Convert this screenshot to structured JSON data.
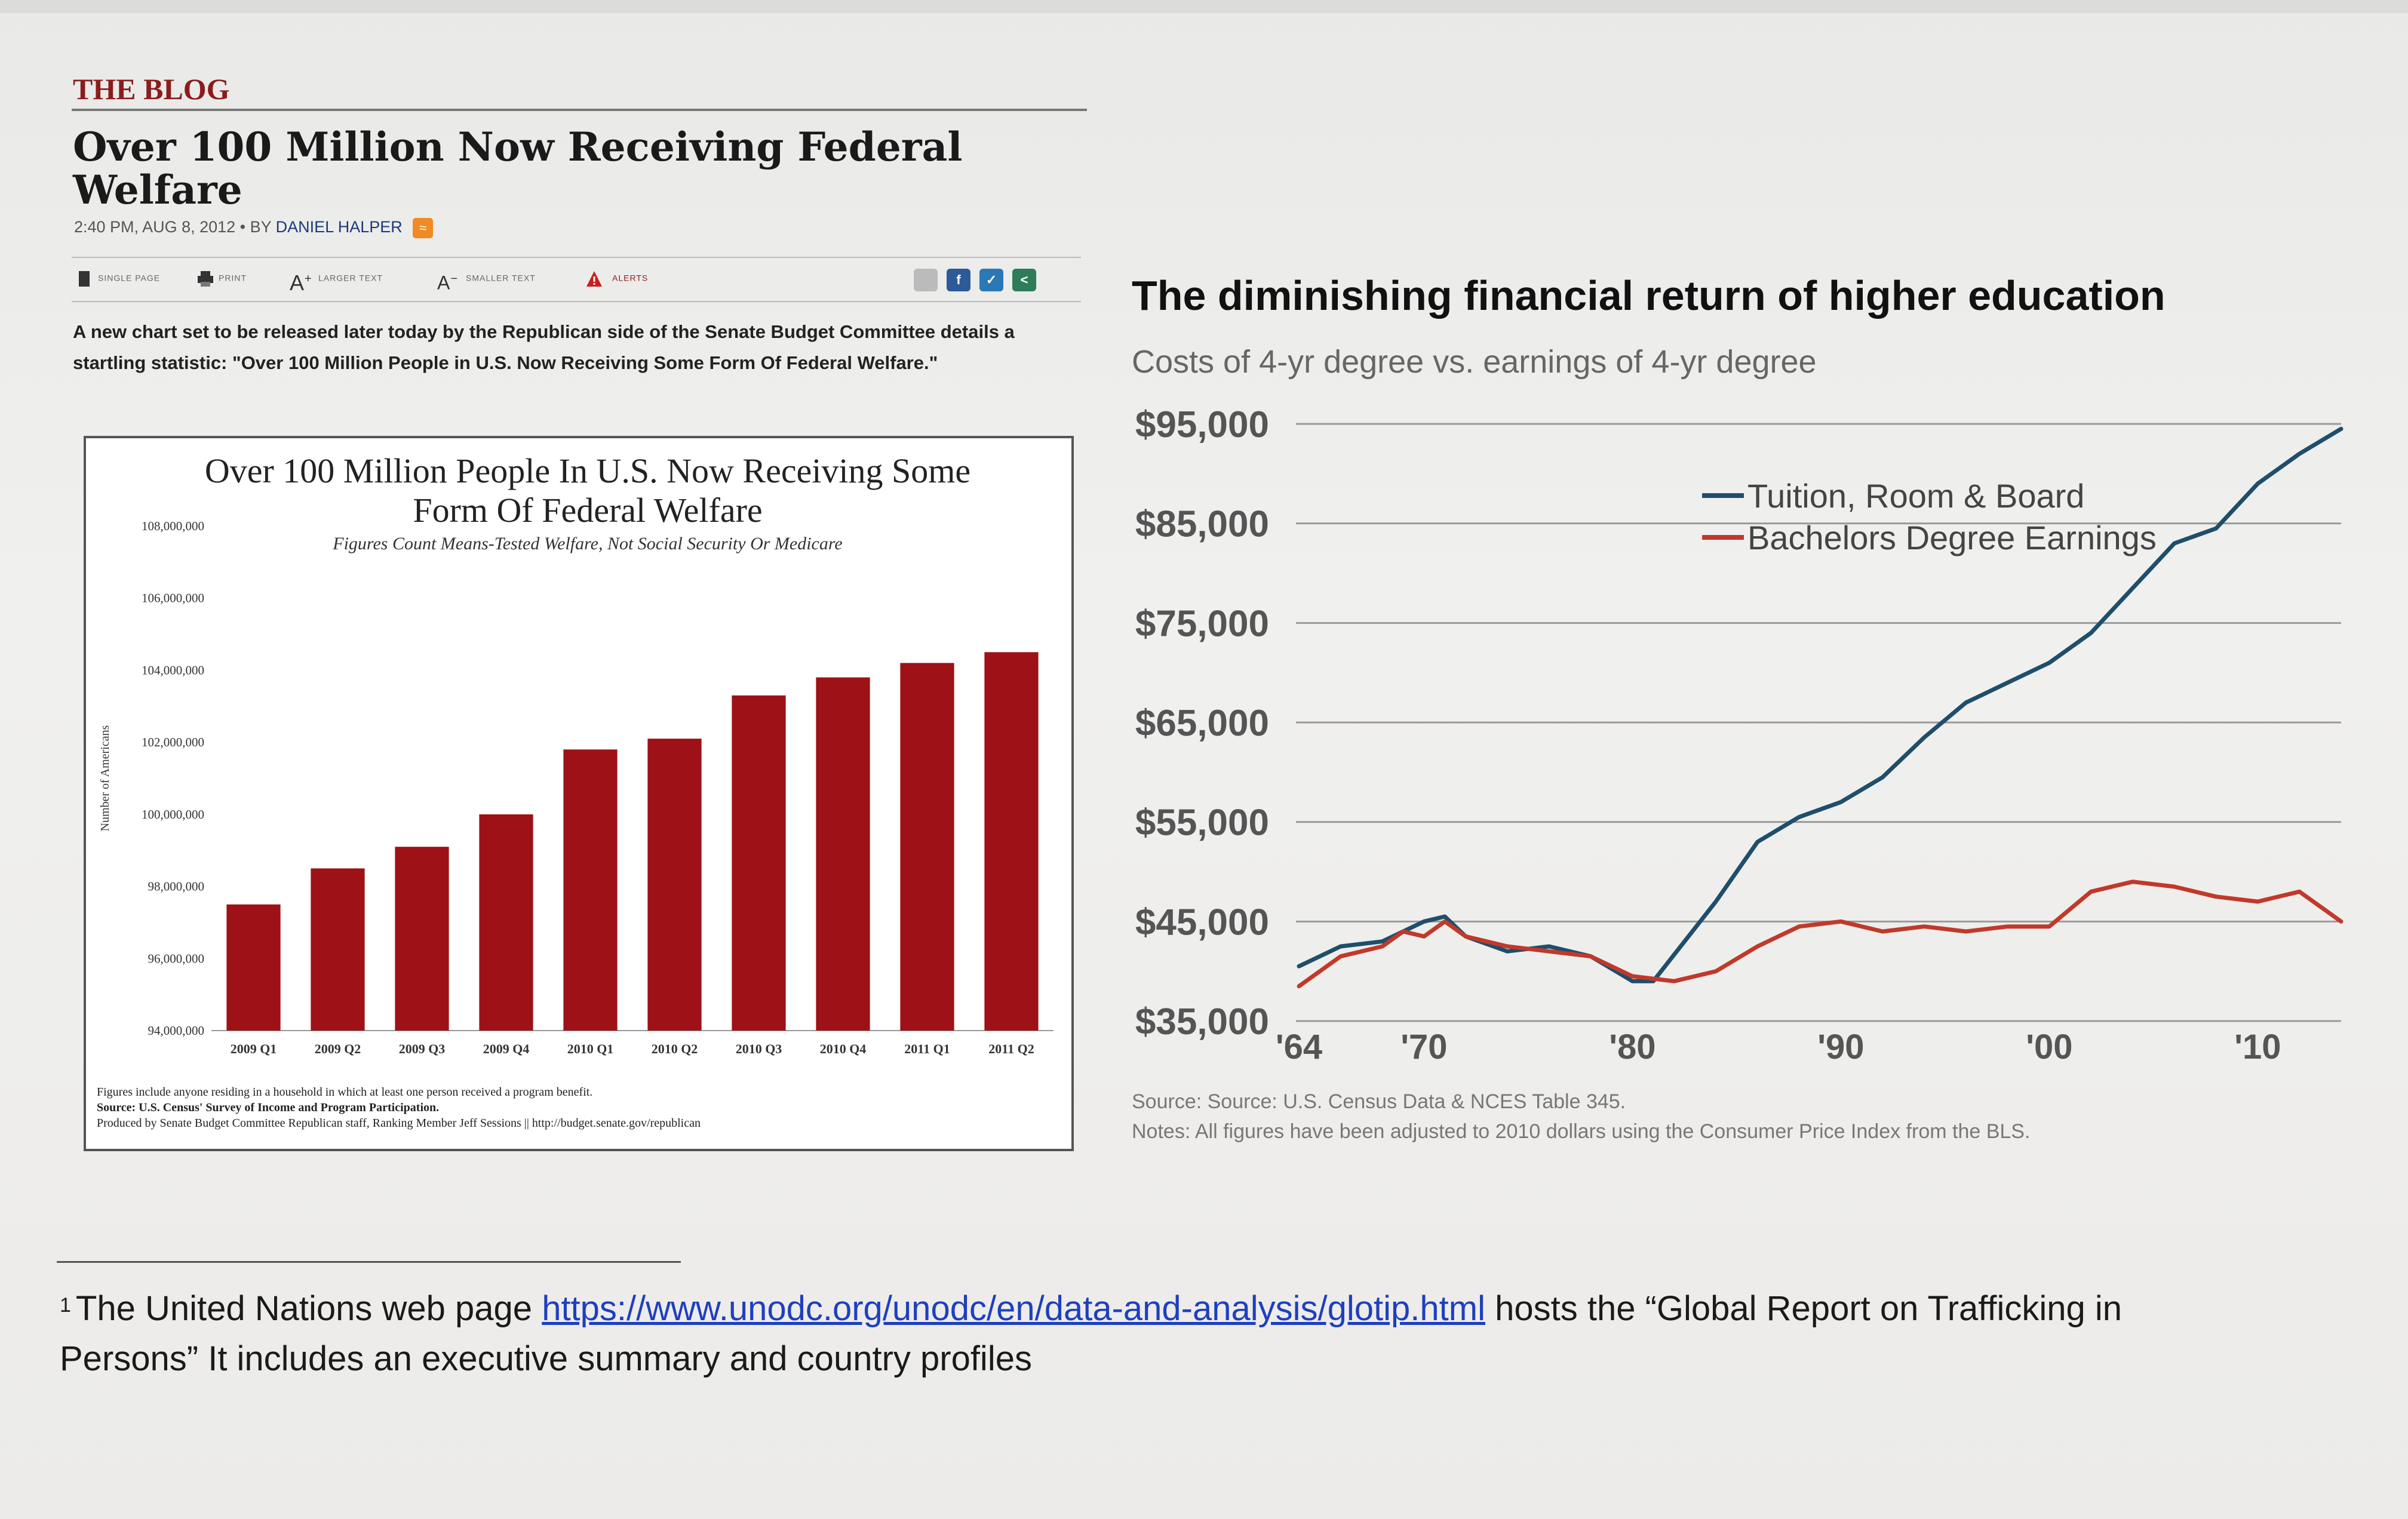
{
  "blog": {
    "label": "THE BLOG",
    "title": "Over 100 Million Now Receiving Federal Welfare",
    "byline_prefix": "2:40 PM, AUG 8, 2012 • BY",
    "author": "DANIEL HALPER",
    "toolbar": [
      "SINGLE PAGE",
      "PRINT",
      "LARGER TEXT",
      "SMALLER TEXT",
      "ALERTS"
    ],
    "intro": "A new chart set to be released later today by the Republican side of the Senate Budget Committee details a startling statistic: \"Over 100 Million People in U.S. Now Receiving Some Form Of Federal Welfare.\""
  },
  "welfare_chart": {
    "title": "Over 100 Million People In U.S. Now Receiving Some Form Of Federal Welfare",
    "subtitle": "Figures Count Means-Tested Welfare, Not Social Security Or Medicare",
    "note1": "Figures include anyone residing in a household in which at least one person received a program benefit.",
    "note2": "Source: U.S. Census' Survey of Income and Program Participation.",
    "note3": "Produced by Senate Budget Committee Republican staff, Ranking Member Jeff Sessions || http://budget.senate.gov/republican"
  },
  "education_chart": {
    "title": "The diminishing financial return of higher education",
    "subtitle": "Costs of 4-yr degree vs. earnings of 4-yr degree",
    "source": "Source: Source: U.S. Census Data & NCES Table 345.",
    "notes": "Notes: All figures have been adjusted to 2010 dollars using the Consumer Price Index from the BLS."
  },
  "footnote": {
    "number": "1",
    "text_before": "The United Nations web page ",
    "link": "https://www.unodc.org/unodc/en/data-and-analysis/glotip.html",
    "text_after": " hosts the “Global Report on Trafficking in Persons” It includes an executive summary and country profiles"
  },
  "chart_data": [
    {
      "type": "bar",
      "title": "Over 100 Million People In U.S. Now Receiving Some Form Of Federal Welfare",
      "subtitle": "Figures Count Means-Tested Welfare, Not Social Security Or Medicare",
      "xlabel": "",
      "ylabel": "Number of Americans",
      "categories": [
        "2009 Q1",
        "2009 Q2",
        "2009 Q3",
        "2009 Q4",
        "2010 Q1",
        "2010 Q2",
        "2010 Q3",
        "2010 Q4",
        "2011 Q1",
        "2011 Q2"
      ],
      "values": [
        97500000,
        98500000,
        99100000,
        100000000,
        101800000,
        102100000,
        103300000,
        103800000,
        104200000,
        104500000
      ],
      "ylim": [
        94000000,
        108000000
      ],
      "yticks": [
        94000000,
        96000000,
        98000000,
        100000000,
        102000000,
        104000000,
        106000000,
        108000000
      ],
      "ytick_labels": [
        "94,000,000",
        "96,000,000",
        "98,000,000",
        "100,000,000",
        "102,000,000",
        "104,000,000",
        "106,000,000",
        "108,000,000"
      ],
      "bar_color": "#9e1116"
    },
    {
      "type": "line",
      "title": "The diminishing financial return of higher education",
      "subtitle": "Costs of 4-yr degree vs. earnings of 4-yr degree",
      "xlim": [
        1964,
        2014
      ],
      "ylim": [
        35000,
        95000
      ],
      "yticks": [
        35000,
        45000,
        55000,
        65000,
        75000,
        85000,
        95000
      ],
      "ytick_labels": [
        "$35,000",
        "$45,000",
        "$55,000",
        "$65,000",
        "$75,000",
        "$85,000",
        "$95,000"
      ],
      "xticks": [
        1964,
        1970,
        1980,
        1990,
        2000,
        2010
      ],
      "xtick_labels": [
        "'64",
        "'70",
        "'80",
        "'90",
        "'00",
        "'10"
      ],
      "legend_position": "top-right",
      "series": [
        {
          "name": "Tuition, Room & Board",
          "color": "#1f4e6b",
          "x": [
            1964,
            1966,
            1968,
            1970,
            1971,
            1972,
            1974,
            1976,
            1978,
            1980,
            1981,
            1984,
            1986,
            1988,
            1990,
            1992,
            1994,
            1996,
            1998,
            2000,
            2002,
            2004,
            2006,
            2008,
            2010,
            2012,
            2014
          ],
          "y": [
            40500,
            42500,
            43000,
            45000,
            45500,
            43500,
            42000,
            42500,
            41500,
            39000,
            39000,
            47000,
            53000,
            55500,
            57000,
            59500,
            63500,
            67000,
            69000,
            71000,
            74000,
            78500,
            83000,
            84500,
            89000,
            92000,
            94500
          ]
        },
        {
          "name": "Bachelors Degree Earnings",
          "color": "#c0392b",
          "x": [
            1964,
            1966,
            1968,
            1969,
            1970,
            1971,
            1972,
            1974,
            1976,
            1978,
            1980,
            1982,
            1984,
            1986,
            1988,
            1990,
            1992,
            1994,
            1996,
            1998,
            2000,
            2002,
            2004,
            2006,
            2008,
            2010,
            2012,
            2014
          ],
          "y": [
            38500,
            41500,
            42500,
            44000,
            43500,
            45000,
            43500,
            42500,
            42000,
            41500,
            39500,
            39000,
            40000,
            42500,
            44500,
            45000,
            44000,
            44500,
            44000,
            44500,
            44500,
            48000,
            49000,
            48500,
            47500,
            47000,
            48000,
            45000
          ]
        }
      ]
    }
  ]
}
